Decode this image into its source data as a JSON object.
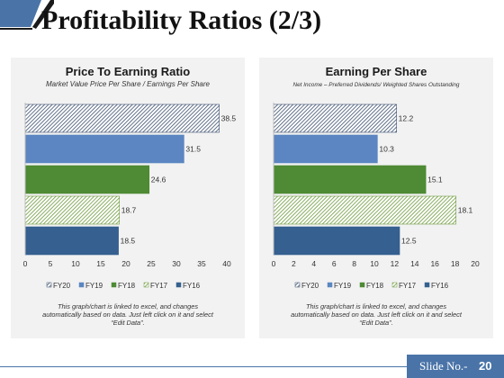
{
  "page": {
    "title": "Profitability Ratios (2/3)",
    "slide_label": "Slide No.-",
    "slide_number": "20",
    "colors": {
      "accent_blue": "#4a74a8",
      "dark": "#1a1a1a"
    }
  },
  "chart_data": [
    {
      "type": "bar",
      "orientation": "horizontal",
      "title": "Price To Earning Ratio",
      "subtitle": "Market Value Price Per Share / Earnings Per Share",
      "categories": [
        "FY20",
        "FY19",
        "FY18",
        "FY17",
        "FY16"
      ],
      "values": [
        38.5,
        31.5,
        24.6,
        18.7,
        18.5
      ],
      "value_labels": [
        "38.5",
        "31.5",
        "24.6",
        "18.7",
        "18.5"
      ],
      "xlim": [
        0,
        40
      ],
      "ticks": [
        0,
        5,
        10,
        15,
        20,
        25,
        30,
        35,
        40
      ],
      "tick_labels": [
        "0",
        "5",
        "10",
        "15",
        "20",
        "25",
        "30",
        "35",
        "40"
      ],
      "legend_labels": [
        "FY20",
        "FY19",
        "FY18",
        "FY17",
        "FY16"
      ],
      "legend_placement": "bottom",
      "grid": false,
      "note_lines": [
        "This graph/chart is linked to excel, and changes",
        "automatically based on data. Just left click on it and select",
        "“Edit Data”."
      ]
    },
    {
      "type": "bar",
      "orientation": "horizontal",
      "title": "Earning Per Share",
      "subtitle": "Net Income – Preferred Dividends/ Weighted Shares Outstanding",
      "categories": [
        "FY20",
        "FY19",
        "FY18",
        "FY17",
        "FY16"
      ],
      "values": [
        12.2,
        10.3,
        15.1,
        18.1,
        12.5
      ],
      "value_labels": [
        "12.2",
        "10.3",
        "15.1",
        "18.1",
        "12.5"
      ],
      "xlim": [
        0,
        20
      ],
      "ticks": [
        0,
        2,
        4,
        6,
        8,
        10,
        12,
        14,
        16,
        18,
        20
      ],
      "tick_labels": [
        "0",
        "2",
        "4",
        "6",
        "8",
        "10",
        "12",
        "14",
        "16",
        "18",
        "20"
      ],
      "legend_labels": [
        "FY20",
        "FY19",
        "FY18",
        "FY17",
        "FY16"
      ],
      "legend_placement": "bottom",
      "grid": false,
      "note_lines": [
        "This graph/chart is linked to excel, and changes",
        "automatically based on data. Just left click on it and select",
        "“Edit Data”."
      ]
    }
  ],
  "series_styles": [
    {
      "pattern": "hatch-dark",
      "color": "#3b4f6e"
    },
    {
      "pattern": "solid",
      "color": "#5b86c1"
    },
    {
      "pattern": "solid",
      "color": "#4f8a34"
    },
    {
      "pattern": "hatch-green",
      "color": "#6d9a3c"
    },
    {
      "pattern": "solid",
      "color": "#35608f"
    }
  ]
}
